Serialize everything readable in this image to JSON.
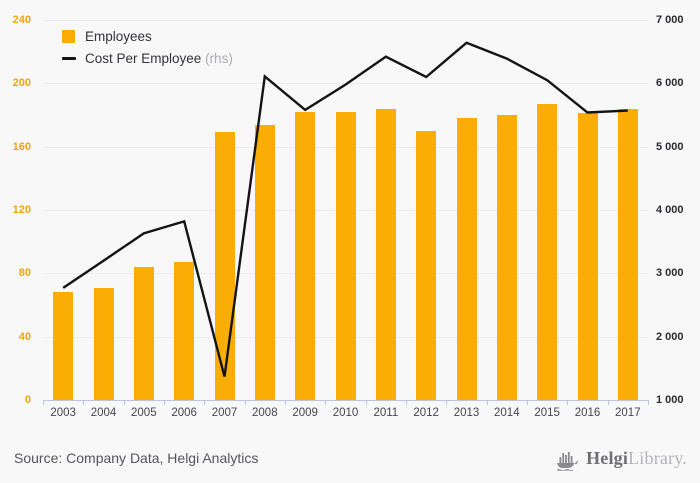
{
  "legend": {
    "employees_label": "Employees",
    "cost_label": "Cost Per Employee",
    "cost_suffix": " (rhs)"
  },
  "footer": {
    "source": "Source: Company Data, Helgi Analytics",
    "brand_bold": "Helgi",
    "brand_light": "Library."
  },
  "colors": {
    "bar": "#f9ad05",
    "line": "#141414",
    "left_axis_label": "#f2a40c",
    "right_axis_label": "#2b2b30",
    "x_axis_label": "#46464f",
    "axis_line": "#bcc5de",
    "gridline": "#ececee",
    "background": "#f8f8f9"
  },
  "chart_data": {
    "type": "bar",
    "title": "",
    "categories": [
      "2003",
      "2004",
      "2005",
      "2006",
      "2007",
      "2008",
      "2009",
      "2010",
      "2011",
      "2012",
      "2013",
      "2014",
      "2015",
      "2016",
      "2017"
    ],
    "series": [
      {
        "name": "Employees",
        "type": "bar",
        "axis": "left",
        "values": [
          68,
          71,
          84,
          87,
          169,
          174,
          182,
          182,
          184,
          170,
          178,
          180,
          187,
          181,
          184
        ]
      },
      {
        "name": "Cost Per Employee (rhs)",
        "type": "line",
        "axis": "right",
        "values": [
          2770,
          3200,
          3630,
          3820,
          1370,
          6110,
          5580,
          5980,
          6420,
          6100,
          6640,
          6390,
          6050,
          5540,
          5570
        ]
      }
    ],
    "left_axis": {
      "min": 0,
      "max": 240,
      "step": 40,
      "tick_labels": [
        "0",
        "40",
        "80",
        "120",
        "160",
        "200",
        "240"
      ]
    },
    "right_axis": {
      "min": 1000,
      "max": 7000,
      "step": 1000,
      "tick_labels": [
        "1 000",
        "2 000",
        "3 000",
        "4 000",
        "5 000",
        "6 000",
        "7 000"
      ]
    },
    "grid": true,
    "legend_position": "top-left"
  }
}
